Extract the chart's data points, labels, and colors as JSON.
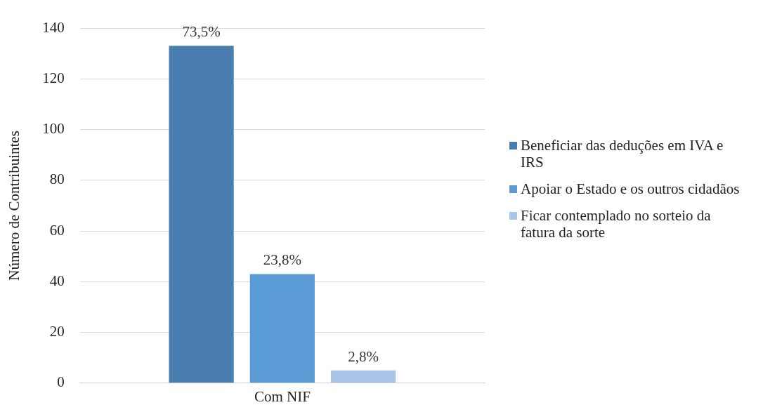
{
  "chart_data": {
    "type": "bar",
    "categories": [
      "Com NIF"
    ],
    "ylabel": "Número de Contribuintes",
    "ylim": [
      0,
      140
    ],
    "yticks": [
      0,
      20,
      40,
      60,
      80,
      100,
      120,
      140
    ],
    "grid": "y",
    "legend": "right",
    "series": [
      {
        "name": "Beneficiar das deduções em IVA e IRS",
        "color": "#4a7db0",
        "values": [
          133
        ]
      },
      {
        "name": "Apoiar o Estado e os outros cidadãos",
        "color": "#5b9bd5",
        "values": [
          43
        ]
      },
      {
        "name": "Ficar contemplado no sorteio da fatura da sorte",
        "color": "#a9c4e6",
        "values": [
          5
        ]
      }
    ],
    "annotations": [
      "73,5%",
      "23,8%",
      "2,8%"
    ]
  }
}
